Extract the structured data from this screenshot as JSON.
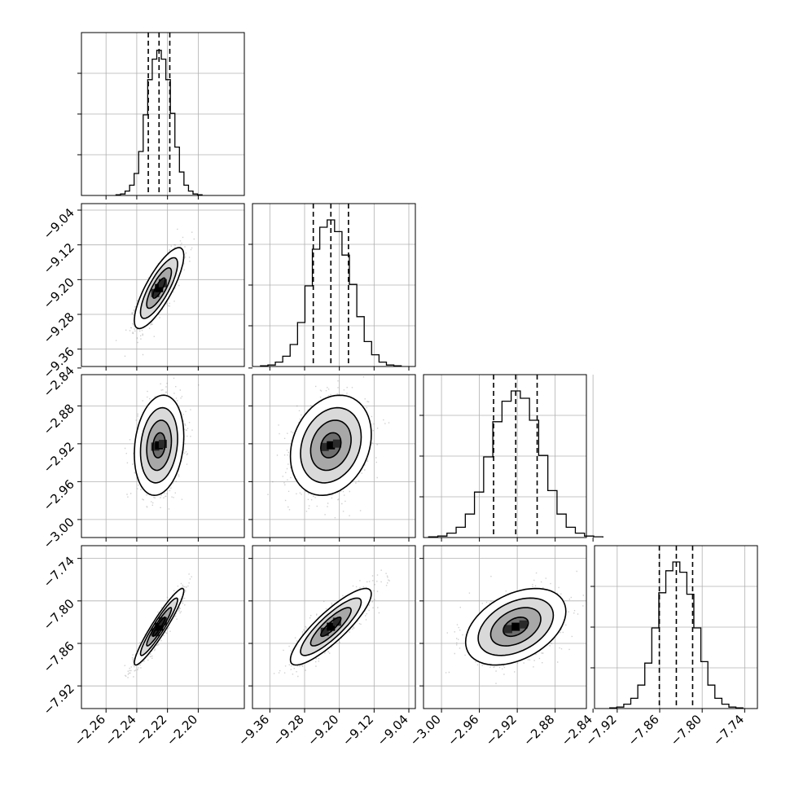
{
  "chart_data": {
    "type": "corner",
    "grid": true,
    "variables": [
      {
        "ticks": [
          -2.26,
          -2.24,
          -2.22,
          -2.2
        ],
        "tick_labels": [
          "−2.26",
          "−2.24",
          "−2.22",
          "−2.20"
        ],
        "range": [
          -2.276,
          -2.17
        ],
        "median": -2.2255,
        "q16": -2.2325,
        "q84": -2.2185
      },
      {
        "ticks": [
          -9.36,
          -9.28,
          -9.2,
          -9.12,
          -9.04
        ],
        "tick_labels": [
          "−9.36",
          "−9.28",
          "−9.20",
          "−9.12",
          "−9.04"
        ],
        "range": [
          -9.4,
          -9.025
        ],
        "median": -9.2195,
        "q16": -9.26,
        "q84": -9.179
      },
      {
        "ticks": [
          -3.0,
          -2.96,
          -2.92,
          -2.88,
          -2.84
        ],
        "tick_labels": [
          "−3.00",
          "−2.96",
          "−2.92",
          "−2.88",
          "−2.84"
        ],
        "range": [
          -3.019,
          -2.847
        ],
        "median": -2.9216,
        "q16": -2.945,
        "q84": -2.899
      },
      {
        "ticks": [
          -7.92,
          -7.86,
          -7.8,
          -7.74
        ],
        "tick_labels": [
          "−7.92",
          "−7.86",
          "−7.80",
          "−7.74"
        ],
        "range": [
          -7.952,
          -7.722
        ],
        "median": -7.8365,
        "q16": -7.8605,
        "q84": -7.8135
      }
    ],
    "histograms": [
      [
        0.005,
        0.01,
        0.03,
        0.07,
        0.15,
        0.3,
        0.55,
        0.79,
        0.93,
        0.99,
        0.93,
        0.79,
        0.56,
        0.33,
        0.16,
        0.07,
        0.03,
        0.01,
        0.005
      ],
      [
        0.005,
        0.01,
        0.03,
        0.07,
        0.15,
        0.3,
        0.55,
        0.8,
        0.95,
        1.0,
        0.92,
        0.76,
        0.56,
        0.34,
        0.17,
        0.08,
        0.03,
        0.01,
        0.005
      ],
      [
        0.005,
        0.01,
        0.03,
        0.07,
        0.16,
        0.31,
        0.55,
        0.79,
        0.93,
        1.0,
        0.95,
        0.8,
        0.56,
        0.32,
        0.16,
        0.07,
        0.03,
        0.01,
        0.005
      ],
      [
        0.005,
        0.01,
        0.03,
        0.07,
        0.16,
        0.31,
        0.55,
        0.79,
        0.94,
        1.0,
        0.93,
        0.78,
        0.55,
        0.32,
        0.16,
        0.07,
        0.03,
        0.01,
        0.005
      ]
    ],
    "correlations": {
      "1-0": 0.8,
      "2-0": 0.18,
      "2-1": 0.22,
      "3-0": 0.94,
      "3-1": 0.86,
      "3-2": 0.4
    },
    "contour_levels_sigma": [
      0.5,
      1.0,
      1.5,
      2.0
    ]
  }
}
